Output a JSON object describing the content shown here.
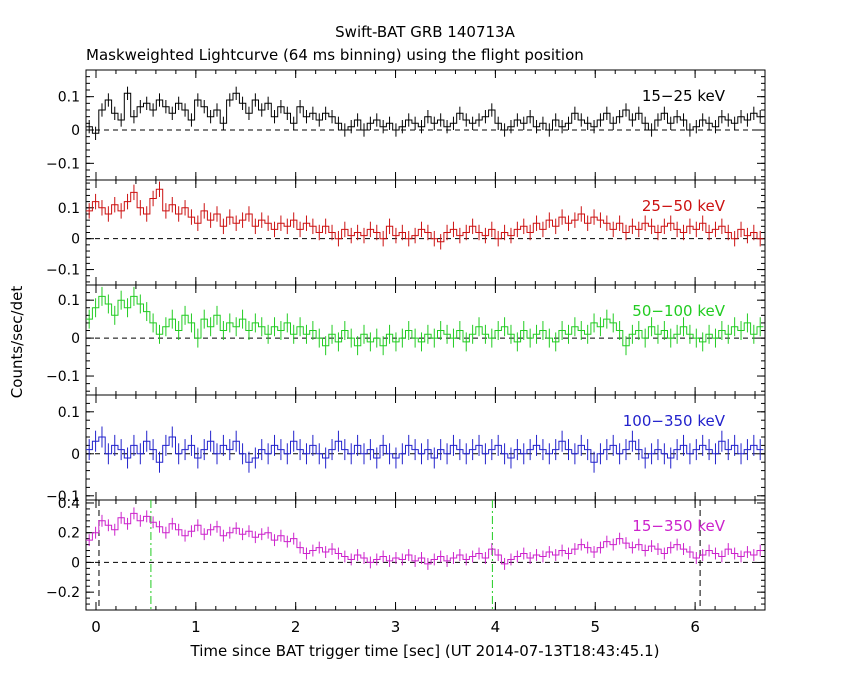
{
  "title": "Swift-BAT GRB 140713A",
  "subtitle": "Maskweighted Lightcurve (64 ms binning) using the flight position",
  "xlabel": "Time since BAT trigger time [sec] (UT 2014-07-13T18:43:45.1)",
  "ylabel": "Counts/sec/det",
  "chart_data": [
    {
      "type": "line",
      "name": "15-25 keV",
      "label": "15−25 keV",
      "color": "#000000",
      "xlim": [
        -0.1,
        6.7
      ],
      "ylim": [
        -0.15,
        0.18
      ],
      "yticks": [
        -0.1,
        0,
        0.1
      ],
      "ytick_labels": [
        "−0.1",
        "0",
        "0.1"
      ],
      "grid": false,
      "legend": "top-right",
      "bin_width": 0.064,
      "error": 0.02,
      "x": [
        -0.1,
        -0.036,
        0.028,
        0.092,
        0.156,
        0.22,
        0.284,
        0.348,
        0.412,
        0.476,
        0.54,
        0.604,
        0.668,
        0.732,
        0.796,
        0.86,
        0.924,
        0.988,
        1.052,
        1.116,
        1.18,
        1.244,
        1.308,
        1.372,
        1.436,
        1.5,
        1.564,
        1.628,
        1.692,
        1.756,
        1.82,
        1.884,
        1.948,
        2.012,
        2.076,
        2.14,
        2.204,
        2.268,
        2.332,
        2.396,
        2.46,
        2.524,
        2.588,
        2.652,
        2.716,
        2.78,
        2.844,
        2.908,
        2.972,
        3.036,
        3.1,
        3.164,
        3.228,
        3.292,
        3.356,
        3.42,
        3.484,
        3.548,
        3.612,
        3.676,
        3.74,
        3.804,
        3.868,
        3.932,
        3.996,
        4.06,
        4.124,
        4.188,
        4.252,
        4.316,
        4.38,
        4.444,
        4.508,
        4.572,
        4.636,
        4.7,
        4.764,
        4.828,
        4.892,
        4.956,
        5.02,
        5.084,
        5.148,
        5.212,
        5.276,
        5.34,
        5.404,
        5.468,
        5.532,
        5.596,
        5.66,
        5.724,
        5.788,
        5.852,
        5.916,
        5.98,
        6.044,
        6.108,
        6.172,
        6.236,
        6.3,
        6.364,
        6.428,
        6.492,
        6.556,
        6.62
      ],
      "y": [
        0.01,
        -0.01,
        0.06,
        0.09,
        0.05,
        0.03,
        0.11,
        0.04,
        0.07,
        0.08,
        0.06,
        0.09,
        0.07,
        0.05,
        0.08,
        0.06,
        0.03,
        0.09,
        0.07,
        0.04,
        0.06,
        0.02,
        0.09,
        0.11,
        0.08,
        0.05,
        0.09,
        0.06,
        0.08,
        0.04,
        0.07,
        0.05,
        0.02,
        0.07,
        0.04,
        0.05,
        0.03,
        0.05,
        0.04,
        0.02,
        0.0,
        0.01,
        0.03,
        0.0,
        0.02,
        0.03,
        0.01,
        0.02,
        0.0,
        0.01,
        0.03,
        0.02,
        0.01,
        0.04,
        0.02,
        0.03,
        0.01,
        0.02,
        0.05,
        0.03,
        0.02,
        0.03,
        0.04,
        0.06,
        0.02,
        0.0,
        0.01,
        0.03,
        0.02,
        0.04,
        0.01,
        0.02,
        0.0,
        0.03,
        0.01,
        0.02,
        0.05,
        0.03,
        0.02,
        0.01,
        0.03,
        0.05,
        0.02,
        0.04,
        0.06,
        0.03,
        0.05,
        0.02,
        0.0,
        0.03,
        0.05,
        0.02,
        0.04,
        0.03,
        0.0,
        0.01,
        0.03,
        0.02,
        0.01,
        0.04,
        0.03,
        0.02,
        0.04,
        0.03,
        0.05,
        0.04
      ]
    },
    {
      "type": "line",
      "name": "25-50 keV",
      "label": "25−50 keV",
      "color": "#cc1111",
      "xlim": [
        -0.1,
        6.7
      ],
      "ylim": [
        -0.15,
        0.19
      ],
      "yticks": [
        -0.1,
        0,
        0.1
      ],
      "ytick_labels": [
        "−0.1",
        "0",
        "0.1"
      ],
      "grid": false,
      "legend": "top-right",
      "bin_width": 0.064,
      "error": 0.025,
      "x": [
        -0.1,
        -0.036,
        0.028,
        0.092,
        0.156,
        0.22,
        0.284,
        0.348,
        0.412,
        0.476,
        0.54,
        0.604,
        0.668,
        0.732,
        0.796,
        0.86,
        0.924,
        0.988,
        1.052,
        1.116,
        1.18,
        1.244,
        1.308,
        1.372,
        1.436,
        1.5,
        1.564,
        1.628,
        1.692,
        1.756,
        1.82,
        1.884,
        1.948,
        2.012,
        2.076,
        2.14,
        2.204,
        2.268,
        2.332,
        2.396,
        2.46,
        2.524,
        2.588,
        2.652,
        2.716,
        2.78,
        2.844,
        2.908,
        2.972,
        3.036,
        3.1,
        3.164,
        3.228,
        3.292,
        3.356,
        3.42,
        3.484,
        3.548,
        3.612,
        3.676,
        3.74,
        3.804,
        3.868,
        3.932,
        3.996,
        4.06,
        4.124,
        4.188,
        4.252,
        4.316,
        4.38,
        4.444,
        4.508,
        4.572,
        4.636,
        4.7,
        4.764,
        4.828,
        4.892,
        4.956,
        5.02,
        5.084,
        5.148,
        5.212,
        5.276,
        5.34,
        5.404,
        5.468,
        5.532,
        5.596,
        5.66,
        5.724,
        5.788,
        5.852,
        5.916,
        5.98,
        6.044,
        6.108,
        6.172,
        6.236,
        6.3,
        6.364,
        6.428,
        6.492,
        6.556,
        6.62
      ],
      "y": [
        0.09,
        0.12,
        0.1,
        0.08,
        0.11,
        0.09,
        0.12,
        0.15,
        0.1,
        0.08,
        0.13,
        0.16,
        0.09,
        0.11,
        0.08,
        0.1,
        0.07,
        0.05,
        0.09,
        0.06,
        0.08,
        0.04,
        0.07,
        0.05,
        0.06,
        0.08,
        0.04,
        0.06,
        0.05,
        0.03,
        0.05,
        0.04,
        0.06,
        0.03,
        0.05,
        0.04,
        0.02,
        0.04,
        0.02,
        0.0,
        0.03,
        0.01,
        0.02,
        0.01,
        0.03,
        0.02,
        0.0,
        0.04,
        0.01,
        0.02,
        0.0,
        0.01,
        0.03,
        0.02,
        0.0,
        -0.01,
        0.02,
        0.03,
        0.01,
        0.02,
        0.04,
        0.02,
        0.01,
        0.03,
        0.0,
        0.02,
        0.01,
        0.03,
        0.04,
        0.02,
        0.05,
        0.03,
        0.06,
        0.04,
        0.07,
        0.05,
        0.06,
        0.08,
        0.05,
        0.07,
        0.06,
        0.05,
        0.03,
        0.05,
        0.02,
        0.04,
        0.03,
        0.05,
        0.04,
        0.02,
        0.04,
        0.05,
        0.03,
        0.02,
        0.04,
        0.03,
        0.05,
        0.02,
        0.03,
        0.04,
        0.02,
        0.0,
        0.03,
        0.01,
        0.02,
        0.0
      ]
    },
    {
      "type": "line",
      "name": "50-100 keV",
      "label": "50−100 keV",
      "color": "#22cc22",
      "xlim": [
        -0.1,
        6.7
      ],
      "ylim": [
        -0.15,
        0.14
      ],
      "yticks": [
        -0.1,
        0,
        0.1
      ],
      "ytick_labels": [
        "−0.1",
        "0",
        "0.1"
      ],
      "grid": false,
      "legend": "top-right",
      "bin_width": 0.064,
      "error": 0.025,
      "x": [
        -0.1,
        -0.036,
        0.028,
        0.092,
        0.156,
        0.22,
        0.284,
        0.348,
        0.412,
        0.476,
        0.54,
        0.604,
        0.668,
        0.732,
        0.796,
        0.86,
        0.924,
        0.988,
        1.052,
        1.116,
        1.18,
        1.244,
        1.308,
        1.372,
        1.436,
        1.5,
        1.564,
        1.628,
        1.692,
        1.756,
        1.82,
        1.884,
        1.948,
        2.012,
        2.076,
        2.14,
        2.204,
        2.268,
        2.332,
        2.396,
        2.46,
        2.524,
        2.588,
        2.652,
        2.716,
        2.78,
        2.844,
        2.908,
        2.972,
        3.036,
        3.1,
        3.164,
        3.228,
        3.292,
        3.356,
        3.42,
        3.484,
        3.548,
        3.612,
        3.676,
        3.74,
        3.804,
        3.868,
        3.932,
        3.996,
        4.06,
        4.124,
        4.188,
        4.252,
        4.316,
        4.38,
        4.444,
        4.508,
        4.572,
        4.636,
        4.7,
        4.764,
        4.828,
        4.892,
        4.956,
        5.02,
        5.084,
        5.148,
        5.212,
        5.276,
        5.34,
        5.404,
        5.468,
        5.532,
        5.596,
        5.66,
        5.724,
        5.788,
        5.852,
        5.916,
        5.98,
        6.044,
        6.108,
        6.172,
        6.236,
        6.3,
        6.364,
        6.428,
        6.492,
        6.556,
        6.62
      ],
      "y": [
        0.05,
        0.08,
        0.11,
        0.09,
        0.06,
        0.1,
        0.08,
        0.11,
        0.09,
        0.07,
        0.04,
        0.01,
        0.03,
        0.05,
        0.02,
        0.06,
        0.04,
        0.0,
        0.05,
        0.03,
        0.06,
        0.02,
        0.04,
        0.03,
        0.05,
        0.02,
        0.04,
        0.03,
        0.01,
        0.03,
        0.02,
        0.04,
        0.01,
        0.03,
        0.01,
        0.02,
        0.0,
        -0.02,
        0.01,
        -0.01,
        0.02,
        0.0,
        -0.02,
        0.01,
        -0.01,
        0.0,
        -0.02,
        0.01,
        -0.01,
        0.0,
        0.02,
        0.0,
        -0.01,
        0.01,
        0.0,
        0.02,
        0.01,
        0.0,
        0.02,
        -0.01,
        0.01,
        0.03,
        0.01,
        0.0,
        0.02,
        0.03,
        0.01,
        -0.01,
        0.02,
        0.0,
        0.01,
        0.02,
        0.0,
        -0.01,
        0.02,
        0.01,
        0.03,
        0.02,
        0.01,
        0.04,
        0.03,
        0.05,
        0.04,
        0.02,
        -0.02,
        0.01,
        0.02,
        0.0,
        0.03,
        0.01,
        0.02,
        0.0,
        0.01,
        0.03,
        0.01,
        0.0,
        -0.01,
        0.01,
        0.0,
        0.02,
        0.01,
        0.03,
        0.02,
        0.04,
        0.01,
        0.03
      ]
    },
    {
      "type": "line",
      "name": "100-350 keV",
      "label": "100−350 keV",
      "color": "#2222cc",
      "xlim": [
        -0.1,
        6.7
      ],
      "ylim": [
        -0.11,
        0.14
      ],
      "yticks": [
        -0.1,
        0,
        0.1
      ],
      "ytick_labels": [
        "−0.1",
        "0",
        "0.1"
      ],
      "grid": false,
      "legend": "top-right",
      "bin_width": 0.064,
      "error": 0.025,
      "x": [
        -0.1,
        -0.036,
        0.028,
        0.092,
        0.156,
        0.22,
        0.284,
        0.348,
        0.412,
        0.476,
        0.54,
        0.604,
        0.668,
        0.732,
        0.796,
        0.86,
        0.924,
        0.988,
        1.052,
        1.116,
        1.18,
        1.244,
        1.308,
        1.372,
        1.436,
        1.5,
        1.564,
        1.628,
        1.692,
        1.756,
        1.82,
        1.884,
        1.948,
        2.012,
        2.076,
        2.14,
        2.204,
        2.268,
        2.332,
        2.396,
        2.46,
        2.524,
        2.588,
        2.652,
        2.716,
        2.78,
        2.844,
        2.908,
        2.972,
        3.036,
        3.1,
        3.164,
        3.228,
        3.292,
        3.356,
        3.42,
        3.484,
        3.548,
        3.612,
        3.676,
        3.74,
        3.804,
        3.868,
        3.932,
        3.996,
        4.06,
        4.124,
        4.188,
        4.252,
        4.316,
        4.38,
        4.444,
        4.508,
        4.572,
        4.636,
        4.7,
        4.764,
        4.828,
        4.892,
        4.956,
        5.02,
        5.084,
        5.148,
        5.212,
        5.276,
        5.34,
        5.404,
        5.468,
        5.532,
        5.596,
        5.66,
        5.724,
        5.788,
        5.852,
        5.916,
        5.98,
        6.044,
        6.108,
        6.172,
        6.236,
        6.3,
        6.364,
        6.428,
        6.492,
        6.556,
        6.62
      ],
      "y": [
        0.01,
        0.03,
        0.04,
        0.0,
        0.02,
        0.01,
        -0.01,
        0.02,
        0.0,
        0.03,
        0.01,
        -0.02,
        0.02,
        0.04,
        0.0,
        0.01,
        0.02,
        -0.01,
        0.01,
        0.03,
        0.0,
        0.02,
        0.01,
        0.03,
        0.0,
        -0.02,
        -0.01,
        0.01,
        0.0,
        0.02,
        0.01,
        0.0,
        0.03,
        0.01,
        0.0,
        0.02,
        0.0,
        -0.01,
        0.01,
        0.03,
        0.01,
        0.0,
        0.02,
        0.0,
        0.01,
        -0.01,
        0.02,
        0.0,
        -0.01,
        0.0,
        0.02,
        0.01,
        0.0,
        0.01,
        -0.01,
        0.01,
        0.0,
        0.02,
        0.01,
        0.0,
        0.01,
        0.02,
        0.0,
        0.01,
        0.02,
        0.0,
        -0.01,
        0.01,
        0.0,
        0.01,
        0.02,
        0.01,
        0.0,
        0.01,
        0.03,
        0.01,
        0.0,
        0.02,
        0.01,
        -0.02,
        0.0,
        0.01,
        0.02,
        0.0,
        0.01,
        0.03,
        0.01,
        -0.01,
        0.0,
        0.01,
        0.0,
        -0.01,
        0.01,
        0.02,
        0.0,
        0.01,
        0.02,
        0.01,
        0.0,
        0.03,
        0.01,
        0.02,
        0.0,
        0.01,
        0.02,
        0.01
      ]
    },
    {
      "type": "line",
      "name": "15-350 keV",
      "label": "15−350 keV",
      "color": "#cc22cc",
      "xlim": [
        -0.1,
        6.7
      ],
      "ylim": [
        -0.32,
        0.42
      ],
      "yticks": [
        -0.2,
        0,
        0.2,
        0.4
      ],
      "ytick_labels": [
        "−0.2",
        "0",
        "0.2",
        "0.4"
      ],
      "grid": false,
      "legend": "top-right",
      "bin_width": 0.064,
      "error": 0.04,
      "markers": [
        {
          "x": 0.03,
          "style": "dashed",
          "color": "#000000"
        },
        {
          "x": 0.55,
          "style": "dashdot",
          "color": "#22cc22"
        },
        {
          "x": 3.97,
          "style": "dashdot",
          "color": "#22cc22"
        },
        {
          "x": 6.05,
          "style": "dashed",
          "color": "#000000"
        }
      ],
      "x": [
        -0.1,
        -0.036,
        0.028,
        0.092,
        0.156,
        0.22,
        0.284,
        0.348,
        0.412,
        0.476,
        0.54,
        0.604,
        0.668,
        0.732,
        0.796,
        0.86,
        0.924,
        0.988,
        1.052,
        1.116,
        1.18,
        1.244,
        1.308,
        1.372,
        1.436,
        1.5,
        1.564,
        1.628,
        1.692,
        1.756,
        1.82,
        1.884,
        1.948,
        2.012,
        2.076,
        2.14,
        2.204,
        2.268,
        2.332,
        2.396,
        2.46,
        2.524,
        2.588,
        2.652,
        2.716,
        2.78,
        2.844,
        2.908,
        2.972,
        3.036,
        3.1,
        3.164,
        3.228,
        3.292,
        3.356,
        3.42,
        3.484,
        3.548,
        3.612,
        3.676,
        3.74,
        3.804,
        3.868,
        3.932,
        3.996,
        4.06,
        4.124,
        4.188,
        4.252,
        4.316,
        4.38,
        4.444,
        4.508,
        4.572,
        4.636,
        4.7,
        4.764,
        4.828,
        4.892,
        4.956,
        5.02,
        5.084,
        5.148,
        5.212,
        5.276,
        5.34,
        5.404,
        5.468,
        5.532,
        5.596,
        5.66,
        5.724,
        5.788,
        5.852,
        5.916,
        5.98,
        6.044,
        6.108,
        6.172,
        6.236,
        6.3,
        6.364,
        6.428,
        6.492,
        6.556,
        6.62
      ],
      "y": [
        0.15,
        0.2,
        0.28,
        0.25,
        0.22,
        0.3,
        0.26,
        0.33,
        0.28,
        0.31,
        0.27,
        0.24,
        0.2,
        0.26,
        0.22,
        0.18,
        0.21,
        0.25,
        0.19,
        0.22,
        0.24,
        0.18,
        0.2,
        0.23,
        0.19,
        0.21,
        0.17,
        0.19,
        0.2,
        0.15,
        0.18,
        0.14,
        0.16,
        0.1,
        0.06,
        0.08,
        0.1,
        0.07,
        0.09,
        0.06,
        0.04,
        0.02,
        0.05,
        0.03,
        0.0,
        0.02,
        0.04,
        0.01,
        0.03,
        0.02,
        0.05,
        0.01,
        0.03,
        -0.01,
        0.02,
        0.04,
        0.01,
        0.03,
        0.05,
        0.02,
        0.04,
        0.06,
        0.03,
        0.09,
        0.05,
        -0.01,
        0.02,
        0.04,
        0.06,
        0.03,
        0.05,
        0.04,
        0.07,
        0.05,
        0.08,
        0.06,
        0.09,
        0.12,
        0.1,
        0.07,
        0.1,
        0.14,
        0.12,
        0.16,
        0.13,
        0.1,
        0.12,
        0.08,
        0.11,
        0.09,
        0.06,
        0.1,
        0.12,
        0.09,
        0.07,
        0.03,
        0.05,
        0.08,
        0.06,
        0.04,
        0.09,
        0.06,
        0.04,
        0.07,
        0.05,
        0.08
      ]
    }
  ],
  "x_axis": {
    "ticks": [
      0,
      1,
      2,
      3,
      4,
      5,
      6
    ],
    "tick_labels": [
      "0",
      "1",
      "2",
      "3",
      "4",
      "5",
      "6"
    ]
  }
}
